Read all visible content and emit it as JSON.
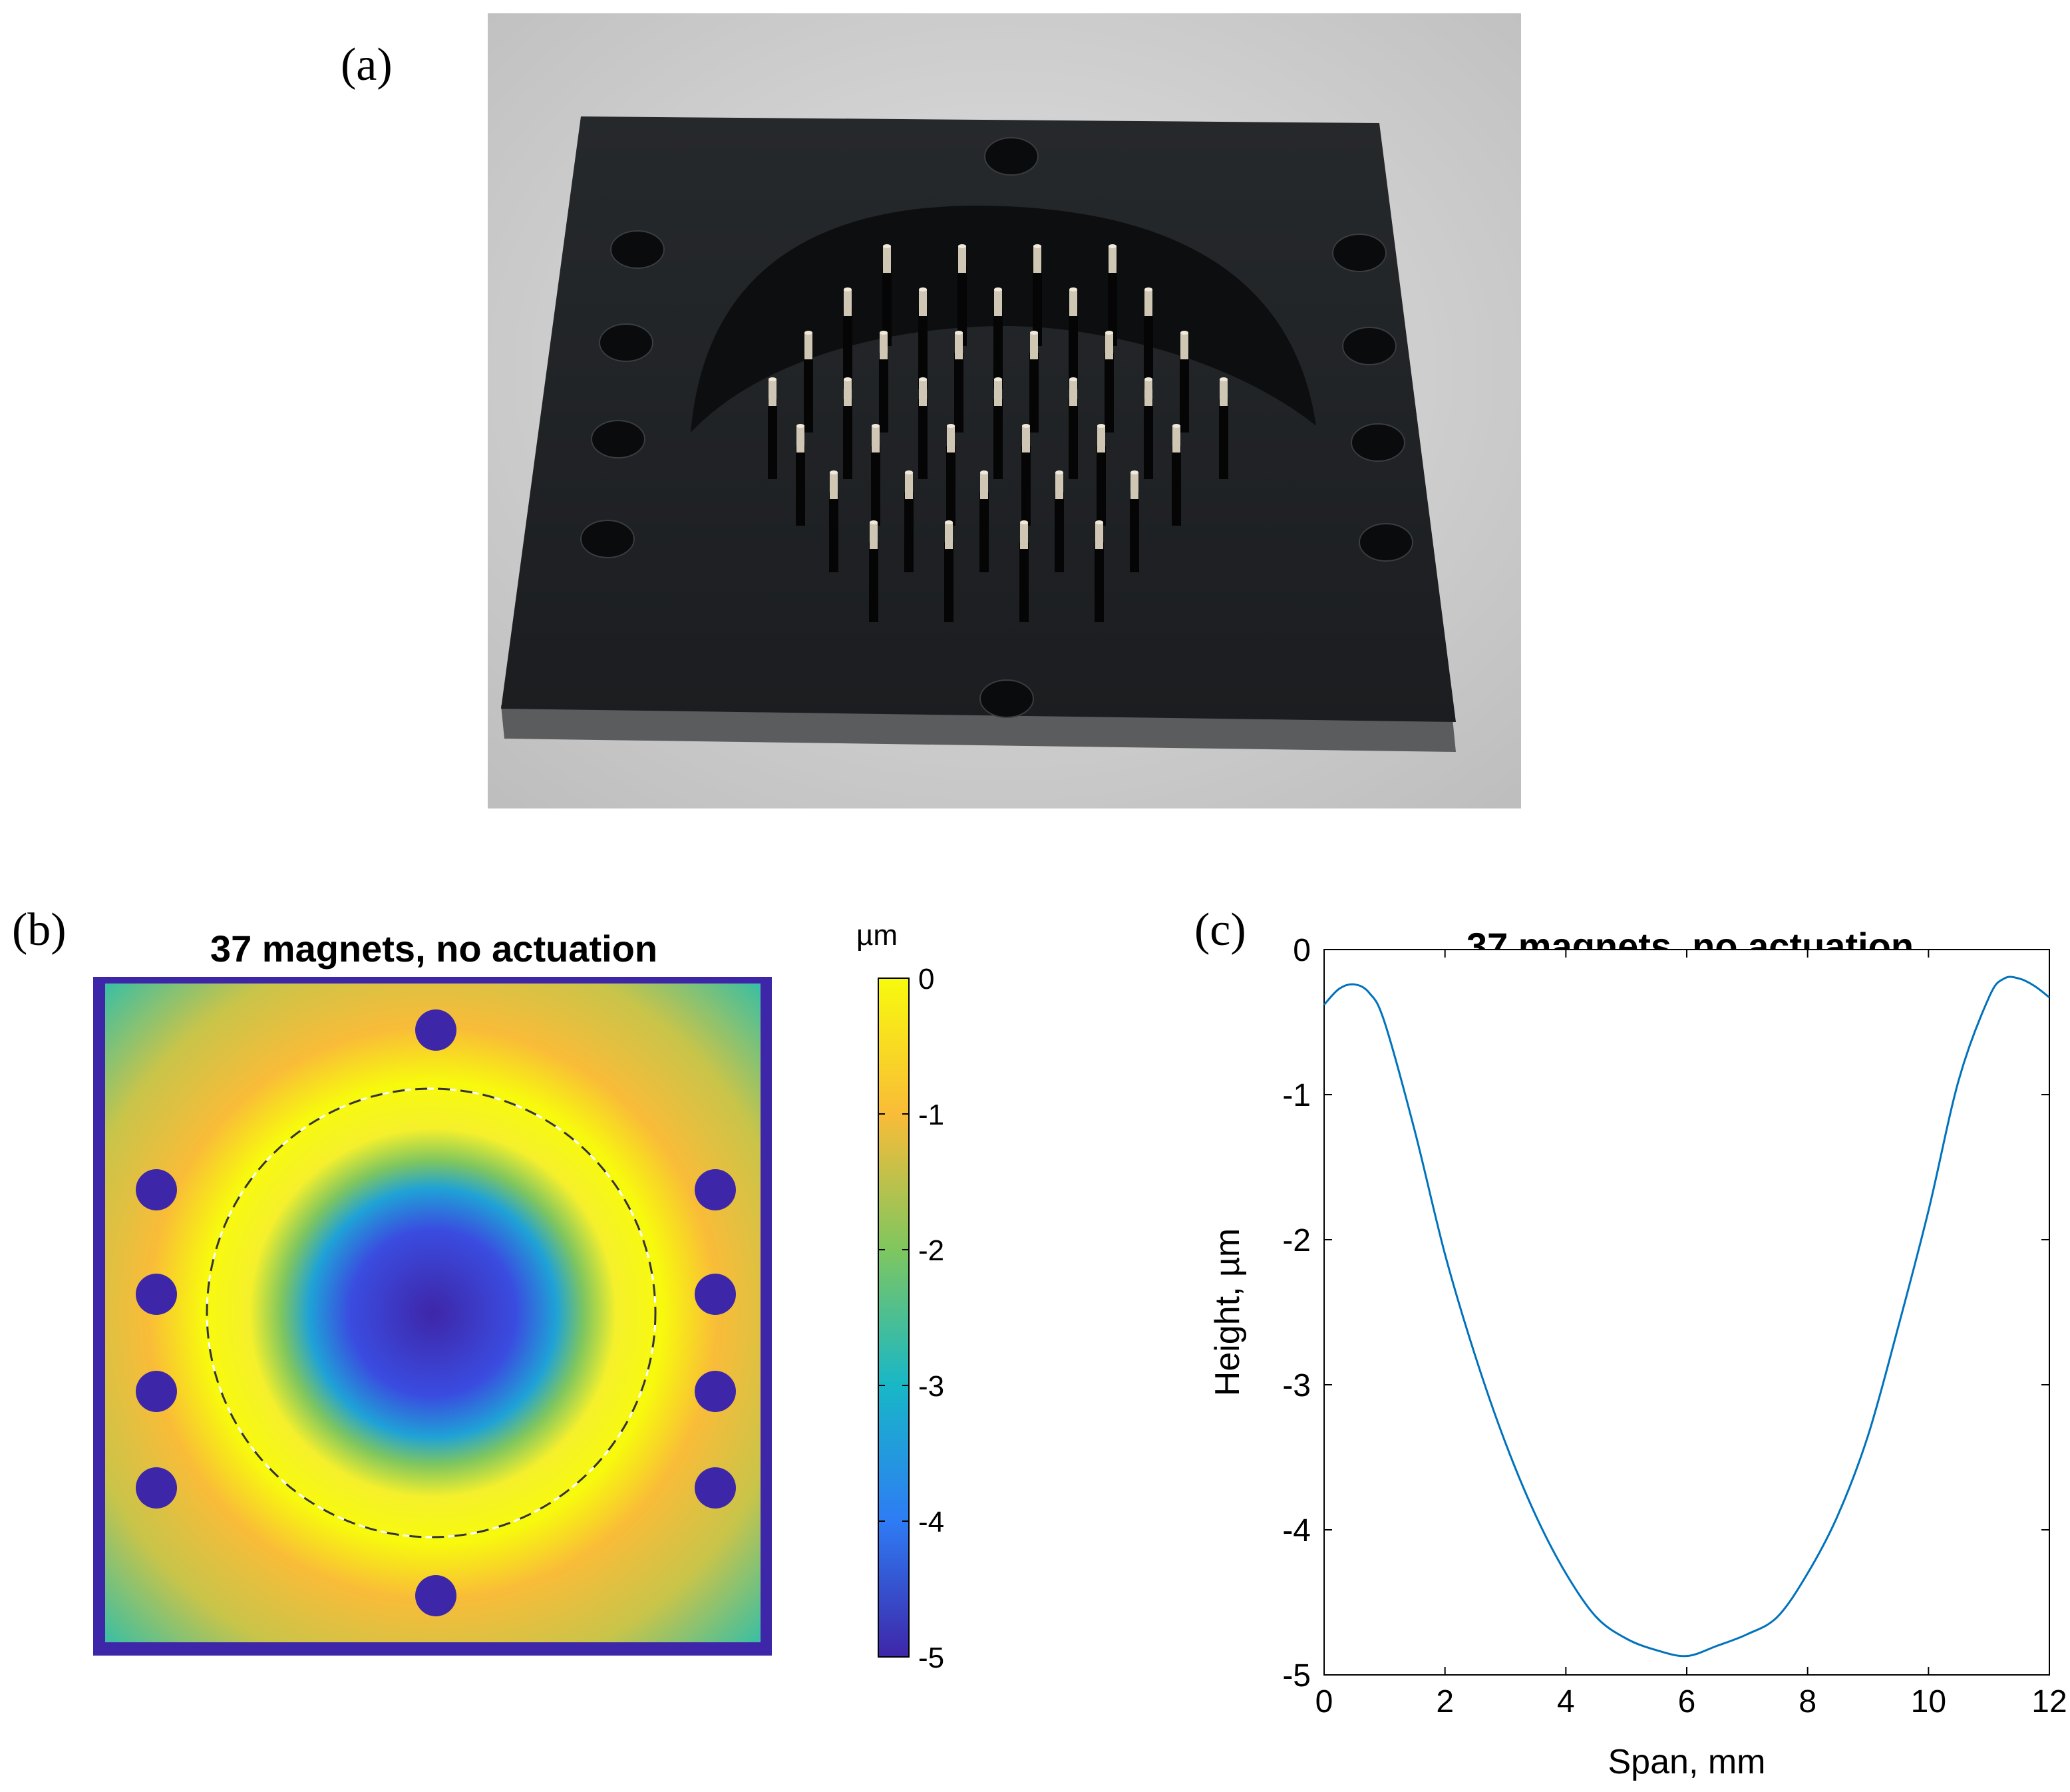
{
  "panels": {
    "a": {
      "letter": "(a)"
    },
    "b": {
      "letter": "(b)",
      "title": "37 magnets, no actuation",
      "colorbar": {
        "unit": "µm",
        "ticks": [
          "0",
          "-1",
          "-2",
          "-3",
          "-4",
          "-5"
        ],
        "range": [
          -5,
          0
        ],
        "colormap": [
          "#3e26a8",
          "#2e7cf4",
          "#18b7c7",
          "#7fc65f",
          "#f9bc38",
          "#f8fa0d"
        ]
      }
    },
    "c": {
      "letter": "(c)"
    }
  },
  "chart_data": {
    "type": "line",
    "title": "37 magnets, no actuation",
    "xlabel": "Span, mm",
    "ylabel": "Height, µm",
    "xlim": [
      0,
      12
    ],
    "ylim": [
      -5,
      0
    ],
    "xticks": [
      "0",
      "2",
      "4",
      "6",
      "8",
      "10",
      "12"
    ],
    "yticks": [
      "0",
      "-1",
      "-2",
      "-3",
      "-4",
      "-5"
    ],
    "line_color": "#0072bd",
    "series": [
      {
        "x": [
          0,
          0.25,
          0.5,
          0.75,
          1.0,
          1.5,
          2.0,
          2.5,
          3.0,
          3.5,
          4.0,
          4.5,
          5.0,
          5.5,
          6.0,
          6.5,
          7.0,
          7.5,
          8.0,
          8.5,
          9.0,
          9.5,
          10.0,
          10.5,
          11.0,
          11.25,
          11.5,
          11.75,
          12.0
        ],
        "y": [
          -0.38,
          -0.27,
          -0.24,
          -0.3,
          -0.5,
          -1.25,
          -2.1,
          -2.8,
          -3.4,
          -3.9,
          -4.3,
          -4.6,
          -4.75,
          -4.83,
          -4.87,
          -4.8,
          -4.72,
          -4.6,
          -4.3,
          -3.9,
          -3.35,
          -2.6,
          -1.8,
          -0.9,
          -0.33,
          -0.2,
          -0.2,
          -0.25,
          -0.33
        ]
      }
    ]
  }
}
